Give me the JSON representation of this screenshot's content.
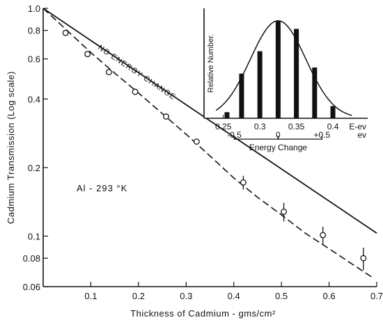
{
  "chart_data": [
    {
      "type": "scatter",
      "xlabel": "Thickness of Cadmium - gms/cm²",
      "ylabel": "Cadmium Transmission (Log scale)",
      "ylog": true,
      "xlim": [
        0,
        0.7
      ],
      "ylim": [
        0.06,
        1.0
      ],
      "xticks": [
        0.1,
        0.2,
        0.3,
        0.4,
        0.5,
        0.6,
        0.7
      ],
      "xtick_labels": [
        "0.1",
        "0.2",
        "0.3",
        "0.4",
        "0.5",
        "0.6",
        "0.7"
      ],
      "yticks": [
        0.06,
        0.08,
        0.1,
        0.2,
        0.4,
        0.6,
        0.8,
        1.0
      ],
      "ytick_labels": [
        "0.06",
        "0.08",
        "0.1",
        "0.2",
        "0.4",
        "0.6",
        "0.8",
        "1.0"
      ],
      "annotations": [
        "Al - 293 °K",
        "NO ENERGY CHANGE"
      ],
      "series": [
        {
          "style": "solid-line",
          "x": [
            0,
            0.7
          ],
          "y": [
            1.0,
            0.103
          ]
        },
        {
          "style": "dashed-line",
          "x": [
            0,
            0.05,
            0.1,
            0.15,
            0.2,
            0.25,
            0.3,
            0.35,
            0.4,
            0.45,
            0.5,
            0.55,
            0.6,
            0.65,
            0.69
          ],
          "y": [
            1.0,
            0.8,
            0.64,
            0.52,
            0.425,
            0.345,
            0.28,
            0.225,
            0.18,
            0.148,
            0.124,
            0.103,
            0.088,
            0.075,
            0.066
          ]
        },
        {
          "style": "open-circles",
          "x": [
            0.047,
            0.093,
            0.138,
            0.193,
            0.258,
            0.322,
            0.42,
            0.505,
            0.587,
            0.672
          ],
          "y": [
            0.78,
            0.63,
            0.525,
            0.43,
            0.335,
            0.26,
            0.172,
            0.128,
            0.101,
            0.08
          ],
          "err": [
            0,
            0,
            0,
            0,
            0,
            0,
            0.012,
            0.012,
            0.009,
            0.009
          ]
        }
      ]
    },
    {
      "type": "bar",
      "inset": true,
      "ylabel": "Relative Number.",
      "xlabel": "Energy Change",
      "x_unit_top": "E-ev",
      "x_unit_bottom": "ev",
      "xlim": [
        0.235,
        0.44
      ],
      "top_ticks": [
        0.25,
        0.3,
        0.35,
        0.4
      ],
      "top_tick_labels": [
        "0.25",
        "0.3",
        "0.35",
        "0.4"
      ],
      "bottom_tick_labels": [
        "-0.5",
        "0",
        "+0.5"
      ],
      "bars": {
        "x": [
          0.255,
          0.275,
          0.3,
          0.325,
          0.35,
          0.375,
          0.4
        ],
        "values": [
          0.06,
          0.44,
          0.66,
          0.96,
          0.88,
          0.5,
          0.12
        ]
      },
      "curve": {
        "mean": 0.325,
        "sigma": 0.038,
        "peak": 0.96
      }
    }
  ]
}
